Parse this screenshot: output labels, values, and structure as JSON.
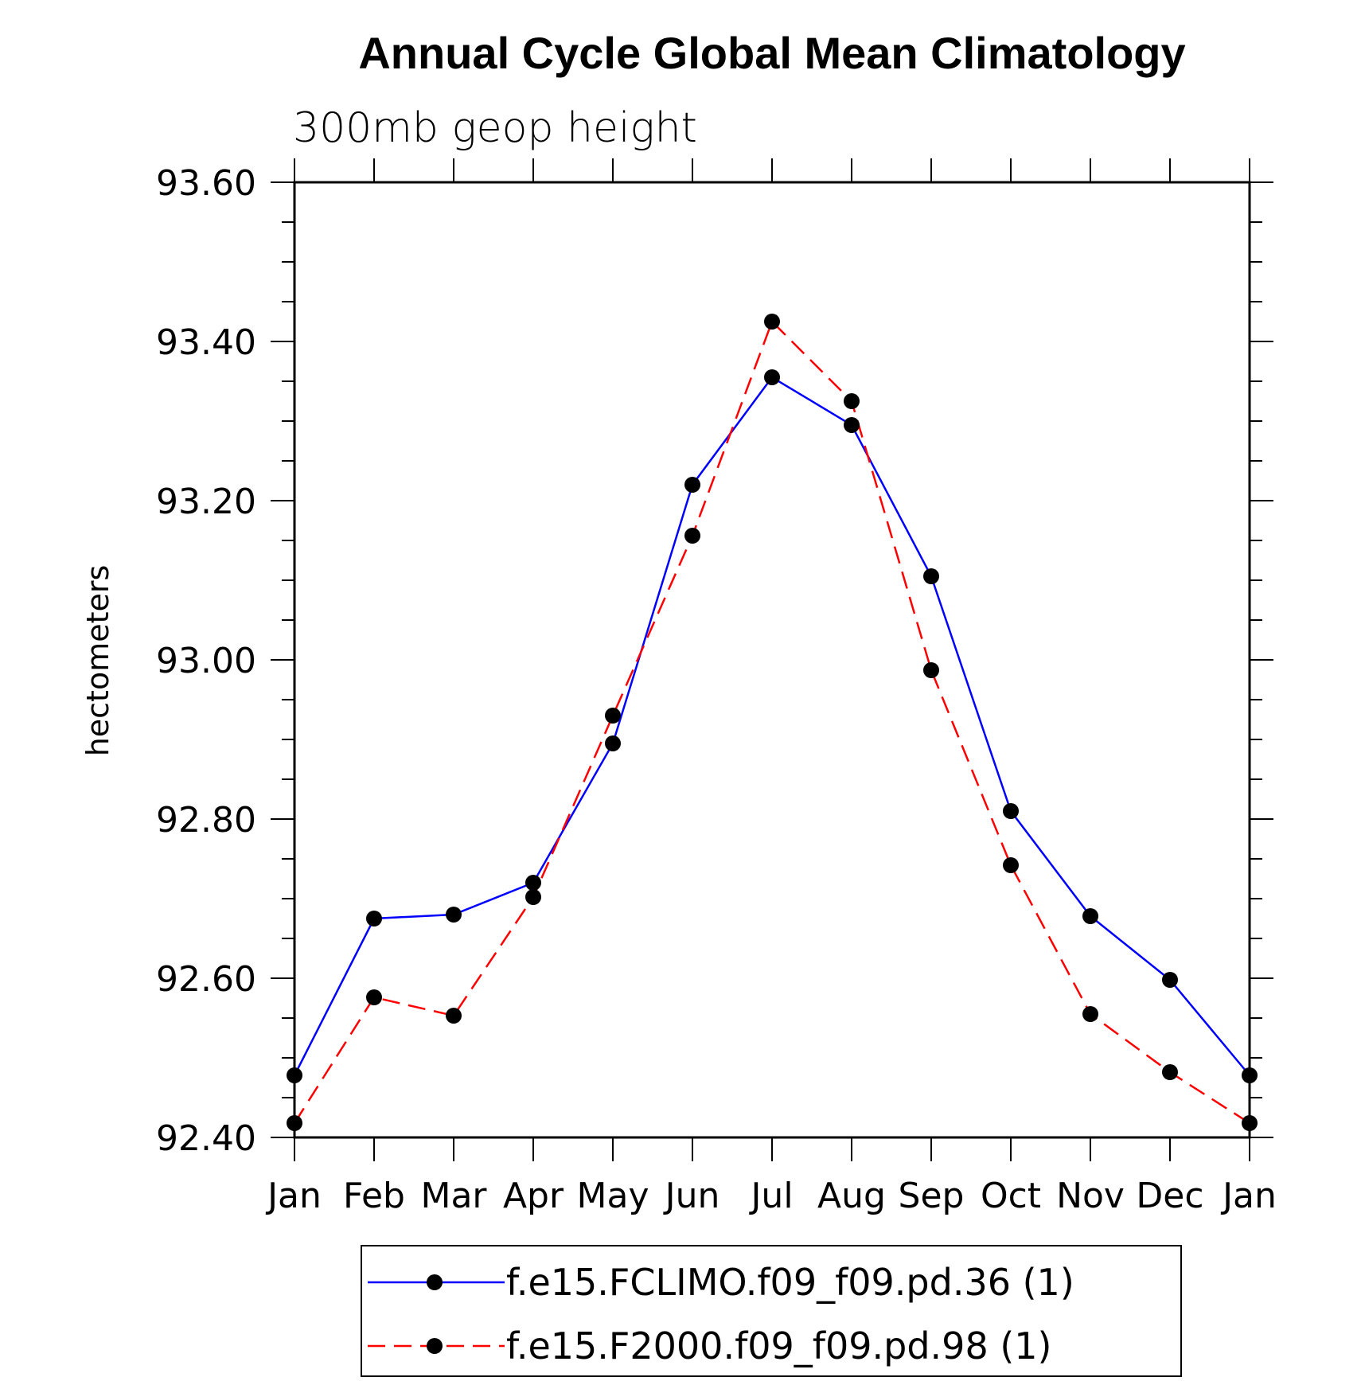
{
  "chart_data": {
    "type": "line",
    "title": "Annual Cycle Global Mean Climatology",
    "subtitle": "300mb geop height",
    "xlabel": "",
    "ylabel": "hectometers",
    "categories": [
      "Jan",
      "Feb",
      "Mar",
      "Apr",
      "May",
      "Jun",
      "Jul",
      "Aug",
      "Sep",
      "Oct",
      "Nov",
      "Dec",
      "Jan"
    ],
    "ylim": [
      92.4,
      93.6
    ],
    "yticks": [
      "93.60",
      "93.40",
      "93.20",
      "93.00",
      "92.80",
      "92.60",
      "92.40"
    ],
    "grid": false,
    "legend_position": "bottom",
    "series": [
      {
        "name": "f.e15.FCLIMO.f09_f09.pd.36 (1)",
        "color": "#0000ff",
        "line_style": "solid",
        "marker": "filled-circle",
        "values": [
          92.478,
          92.675,
          92.68,
          92.72,
          92.895,
          93.22,
          93.355,
          93.295,
          93.105,
          92.81,
          92.678,
          92.598,
          92.478
        ]
      },
      {
        "name": "f.e15.F2000.f09_f09.pd.98 (1)",
        "color": "#ff0000",
        "line_style": "dashed",
        "marker": "filled-circle",
        "values": [
          92.418,
          92.576,
          92.553,
          92.702,
          92.93,
          93.156,
          93.425,
          93.325,
          92.987,
          92.742,
          92.555,
          92.482,
          92.418
        ]
      }
    ]
  }
}
